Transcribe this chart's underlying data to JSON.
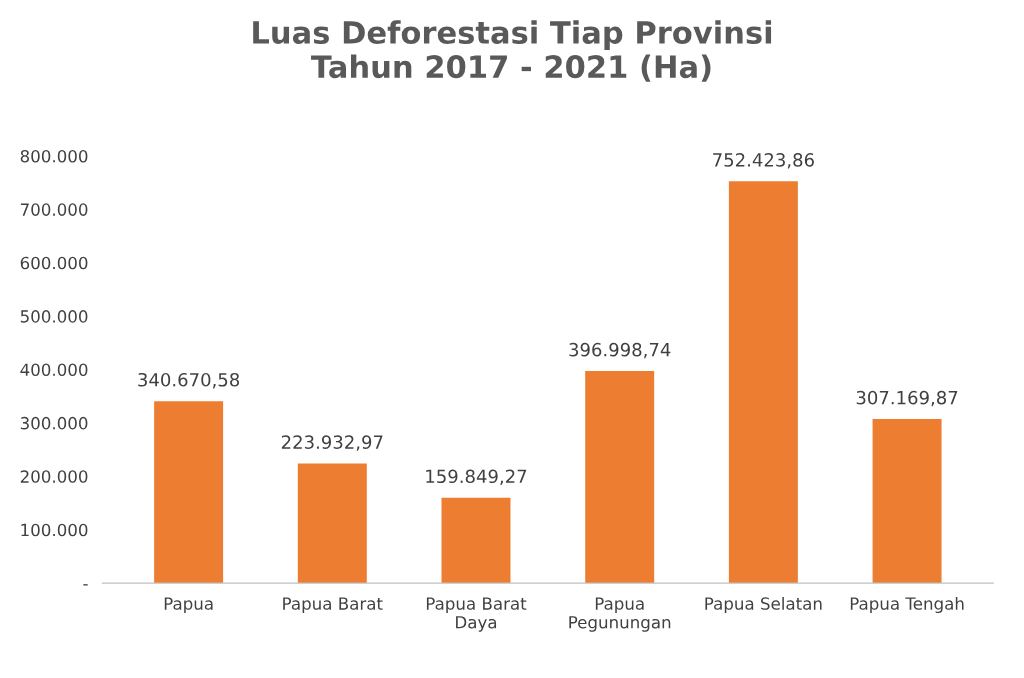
{
  "chart_data": {
    "type": "bar",
    "title": "Luas Deforestasi Tiap Provinsi\nTahun 2017 - 2021 (Ha)",
    "categories": [
      "Papua",
      "Papua Barat",
      "Papua Barat\nDaya",
      "Papua\nPegunungan",
      "Papua Selatan",
      "Papua Tengah"
    ],
    "values": [
      340670.58,
      223932.97,
      159849.27,
      396998.74,
      752423.86,
      307169.87
    ],
    "value_labels": [
      "340.670,58",
      "223.932,97",
      "159.849,27",
      "396.998,74",
      "752.423,86",
      "307.169,87"
    ],
    "color": "#ed7d31",
    "ylim": [
      0,
      800000
    ],
    "yticks": [
      {
        "value": 0,
        "label": "-"
      },
      {
        "value": 100000,
        "label": "100.000"
      },
      {
        "value": 200000,
        "label": "200.000"
      },
      {
        "value": 300000,
        "label": "300.000"
      },
      {
        "value": 400000,
        "label": "400.000"
      },
      {
        "value": 500000,
        "label": "500.000"
      },
      {
        "value": 600000,
        "label": "600.000"
      },
      {
        "value": 700000,
        "label": "700.000"
      },
      {
        "value": 800000,
        "label": "800.000"
      }
    ],
    "grid": false,
    "legend": false
  }
}
